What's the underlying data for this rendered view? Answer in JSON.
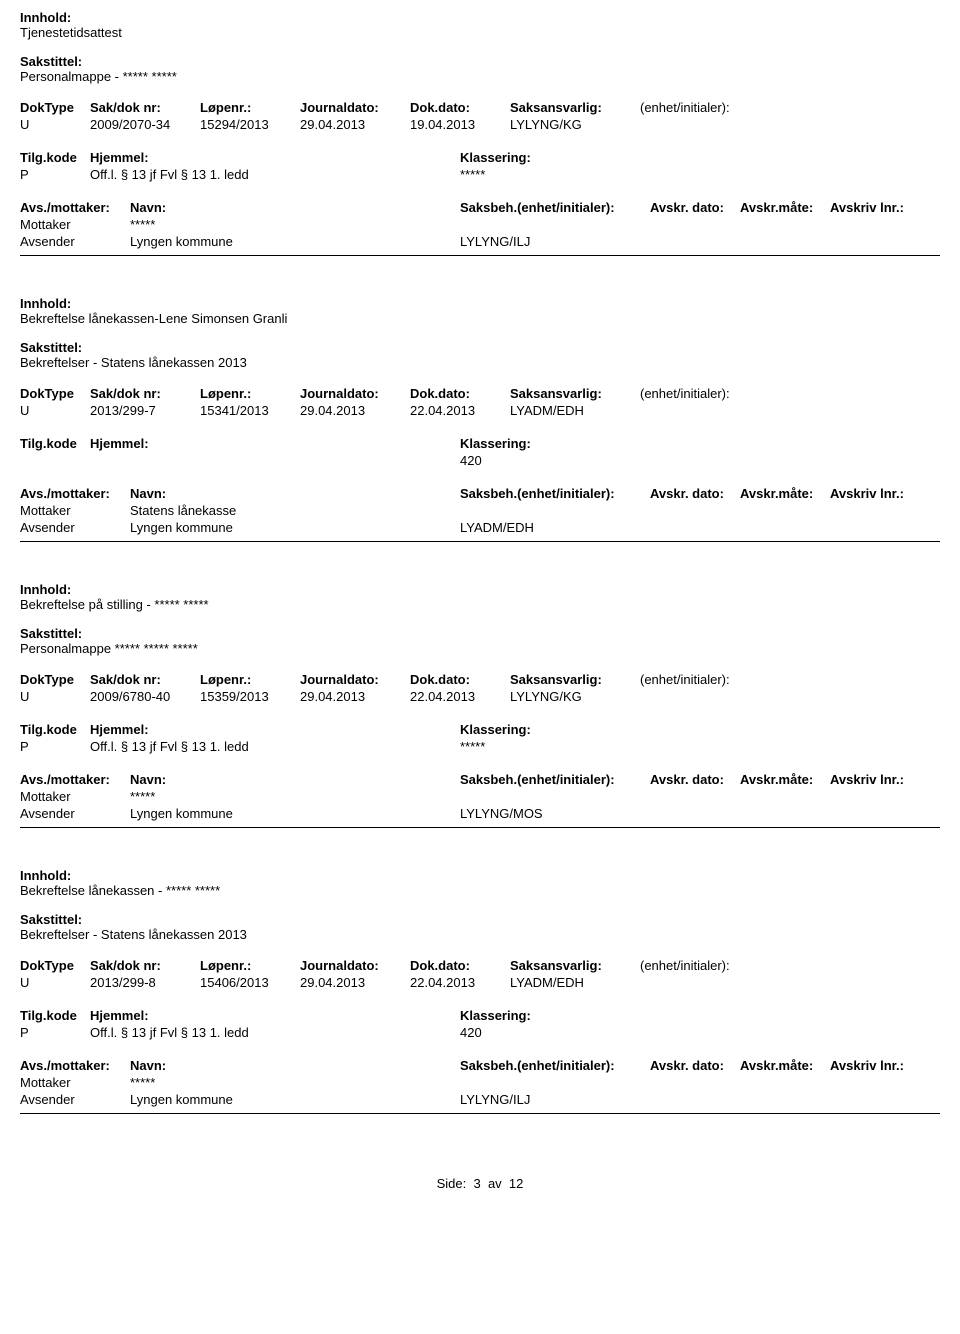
{
  "labels": {
    "innhold": "Innhold:",
    "sakstittel": "Sakstittel:",
    "doktype": "DokType",
    "sakdok": "Sak/dok nr:",
    "lopenr": "Løpenr.:",
    "journaldato": "Journaldato:",
    "dokdato": "Dok.dato:",
    "saksansvarlig": "Saksansvarlig:",
    "enhet": "(enhet/initialer):",
    "tilgkode": "Tilg.kode",
    "hjemmel": "Hjemmel:",
    "klassering": "Klassering:",
    "avsmottaker": "Avs./mottaker:",
    "navn": "Navn:",
    "saksbeh": "Saksbeh.(enhet/initialer):",
    "avskrdato": "Avskr. dato:",
    "avskrmate": "Avskr.måte:",
    "avskrivlnr": "Avskriv lnr.:",
    "mottaker": "Mottaker",
    "avsender": "Avsender",
    "side": "Side:",
    "av": "av"
  },
  "records": [
    {
      "innhold": "Tjenestetidsattest",
      "sakstittel": "Personalmappe - ***** *****",
      "doktype": "U",
      "sakdok": "2009/2070-34",
      "lopenr": "15294/2013",
      "journaldato": "29.04.2013",
      "dokdato": "19.04.2013",
      "saksansvarlig": "LYLYNG/KG",
      "tilgkode": "P",
      "hjemmel": "Off.l. § 13 jf Fvl § 13 1. ledd",
      "klassering": "*****",
      "mottaker_navn": "*****",
      "avsender_navn": "Lyngen kommune",
      "saksbeh_val": "LYLYNG/ILJ"
    },
    {
      "innhold": "Bekreftelse lånekassen-Lene Simonsen Granli",
      "sakstittel": "Bekreftelser - Statens lånekassen 2013",
      "doktype": "U",
      "sakdok": "2013/299-7",
      "lopenr": "15341/2013",
      "journaldato": "29.04.2013",
      "dokdato": "22.04.2013",
      "saksansvarlig": "LYADM/EDH",
      "tilgkode": "",
      "hjemmel": "",
      "klassering": "420",
      "mottaker_navn": "Statens lånekasse",
      "avsender_navn": "Lyngen kommune",
      "saksbeh_val": "LYADM/EDH"
    },
    {
      "innhold": "Bekreftelse på stilling - ***** *****",
      "sakstittel": "Personalmappe ***** ***** *****",
      "doktype": "U",
      "sakdok": "2009/6780-40",
      "lopenr": "15359/2013",
      "journaldato": "29.04.2013",
      "dokdato": "22.04.2013",
      "saksansvarlig": "LYLYNG/KG",
      "tilgkode": "P",
      "hjemmel": "Off.l. § 13 jf Fvl § 13 1. ledd",
      "klassering": "*****",
      "mottaker_navn": "*****",
      "avsender_navn": "Lyngen kommune",
      "saksbeh_val": "LYLYNG/MOS"
    },
    {
      "innhold": "Bekreftelse lånekassen - ***** *****",
      "sakstittel": "Bekreftelser - Statens lånekassen 2013",
      "doktype": "U",
      "sakdok": "2013/299-8",
      "lopenr": "15406/2013",
      "journaldato": "29.04.2013",
      "dokdato": "22.04.2013",
      "saksansvarlig": "LYADM/EDH",
      "tilgkode": "P",
      "hjemmel": "Off.l. § 13 jf Fvl § 13 1. ledd",
      "klassering": "420",
      "mottaker_navn": "*****",
      "avsender_navn": "Lyngen kommune",
      "saksbeh_val": "LYLYNG/ILJ"
    }
  ],
  "page": {
    "current": "3",
    "total": "12"
  }
}
